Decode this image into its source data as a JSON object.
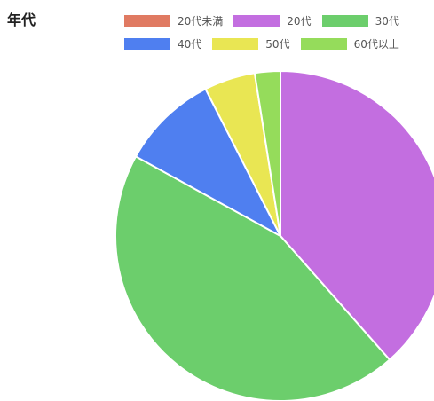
{
  "heading": "年代",
  "chart_data": {
    "type": "pie",
    "title": "",
    "legend_position": "top",
    "categories": [
      "20代未満",
      "20代",
      "30代",
      "40代",
      "50代",
      "60代以上"
    ],
    "values": [
      0,
      38.5,
      44.5,
      9.5,
      5,
      2.5
    ],
    "colors": [
      "#e07a62",
      "#c36ee0",
      "#6cce6c",
      "#4f7ff0",
      "#e9e653",
      "#95dc5b"
    ]
  }
}
